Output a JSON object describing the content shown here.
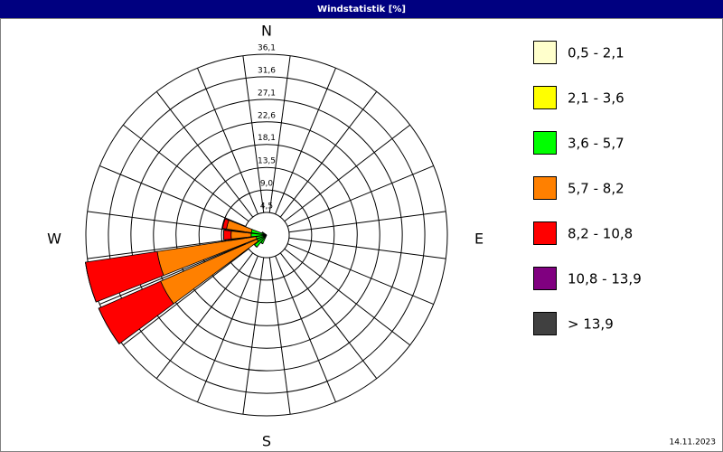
{
  "chart_data": {
    "type": "windrose",
    "title": "Windstatistik [%]",
    "date": "14.11.2023",
    "compass": [
      "N",
      "E",
      "S",
      "W"
    ],
    "categories": [
      null,
      null,
      null,
      null,
      null,
      null,
      null,
      null,
      null,
      null,
      null,
      null,
      null,
      null,
      null,
      null,
      null,
      null,
      null,
      null,
      null,
      null,
      null,
      null
    ],
    "ylim": [
      0,
      36.1
    ],
    "yticks": [
      {
        "value": 4.5,
        "label": "4,5"
      },
      {
        "value": 9.0,
        "label": "9,0"
      },
      {
        "value": 13.5,
        "label": "13,5"
      },
      {
        "value": 18.1,
        "label": "18,1"
      },
      {
        "value": 22.6,
        "label": "22,6"
      },
      {
        "value": 27.1,
        "label": "27,1"
      },
      {
        "value": 31.6,
        "label": "31,6"
      },
      {
        "value": 36.1,
        "label": "36,1"
      }
    ],
    "series": [
      {
        "name": "0,5 - 2,1",
        "color": "#ffffcc",
        "values": [
          0,
          0,
          0,
          0,
          0,
          0,
          0,
          0,
          0,
          0,
          0,
          0,
          0,
          0,
          0.2,
          0.3,
          0.3,
          0.3,
          0.3,
          0.3,
          0.1,
          0,
          0,
          0
        ]
      },
      {
        "name": "2,1 - 3,6",
        "color": "#ffff00",
        "values": [
          0,
          0,
          0,
          0,
          0,
          0,
          0,
          0,
          0,
          0,
          0,
          0,
          0,
          0,
          0.2,
          0.3,
          0.3,
          0.3,
          0.3,
          0.3,
          0.1,
          0,
          0,
          0
        ]
      },
      {
        "name": "3,6 - 5,7",
        "color": "#00ff00",
        "values": [
          0,
          0,
          0,
          0,
          0,
          0,
          0,
          0,
          0,
          0,
          0,
          0,
          0,
          0,
          1.5,
          2.5,
          1.5,
          1.5,
          2.5,
          2.5,
          0.8,
          0,
          0,
          0
        ]
      },
      {
        "name": "5,7 - 8,2",
        "color": "#ff8000",
        "values": [
          0,
          0,
          0,
          0,
          0,
          0,
          0,
          0,
          0,
          0,
          0,
          0,
          0,
          0,
          0,
          0,
          21,
          20,
          4,
          5,
          0,
          0,
          0,
          0
        ]
      },
      {
        "name": "8,2 - 10,8",
        "color": "#ff0000",
        "values": [
          0,
          0,
          0,
          0,
          0,
          0,
          0,
          0,
          0,
          0,
          0,
          0,
          0,
          0,
          0,
          0,
          13.5,
          14.5,
          1.5,
          0.8,
          0,
          0,
          0,
          0
        ]
      },
      {
        "name": "10,8 - 13,9",
        "color": "#800080",
        "values": [
          0,
          0,
          0,
          0,
          0,
          0,
          0,
          0,
          0,
          0,
          0,
          0,
          0,
          0,
          0,
          0,
          0,
          0,
          0,
          0,
          0,
          0,
          0,
          0
        ]
      },
      {
        "name": "> 13,9",
        "color": "#404040",
        "values": [
          0,
          0,
          0,
          0,
          0,
          0,
          0,
          0,
          0,
          0,
          0,
          0,
          0,
          0,
          0,
          0,
          0,
          0,
          0,
          0,
          0,
          0,
          0,
          0
        ]
      }
    ]
  }
}
